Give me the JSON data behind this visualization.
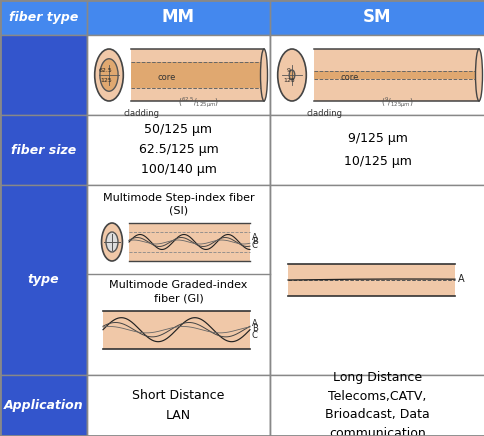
{
  "bg_color": "#2222cc",
  "header_bg": "#4488ee",
  "cell_bg": "#ffffff",
  "left_col_bg": "#3355cc",
  "header_text_color": "#ffffff",
  "left_text_color": "#ffffff",
  "cell_text_color": "#000000",
  "cladding_color": "#f0c8a8",
  "core_color": "#e0a870",
  "fiber_size_mm": "50/125 μm\n62.5/125 μm\n100/140 μm",
  "fiber_size_sm": "9/125 μm\n10/125 μm",
  "type_mm_title1": "Multimode Step-index fiber\n(SI)",
  "type_mm_title2": "Multimode Graded-index\nfiber (GI)",
  "app_mm": "Short Distance\nLAN",
  "app_sm": "Long Distance\nTelecoms,CATV,\nBrioadcast, Data\ncommunication",
  "grid_color": "#888888",
  "c0": 0,
  "c1": 87,
  "c2": 270,
  "c3": 485,
  "r0": 0,
  "r1": 35,
  "r2": 115,
  "r3": 185,
  "r4": 375,
  "r5": 436
}
